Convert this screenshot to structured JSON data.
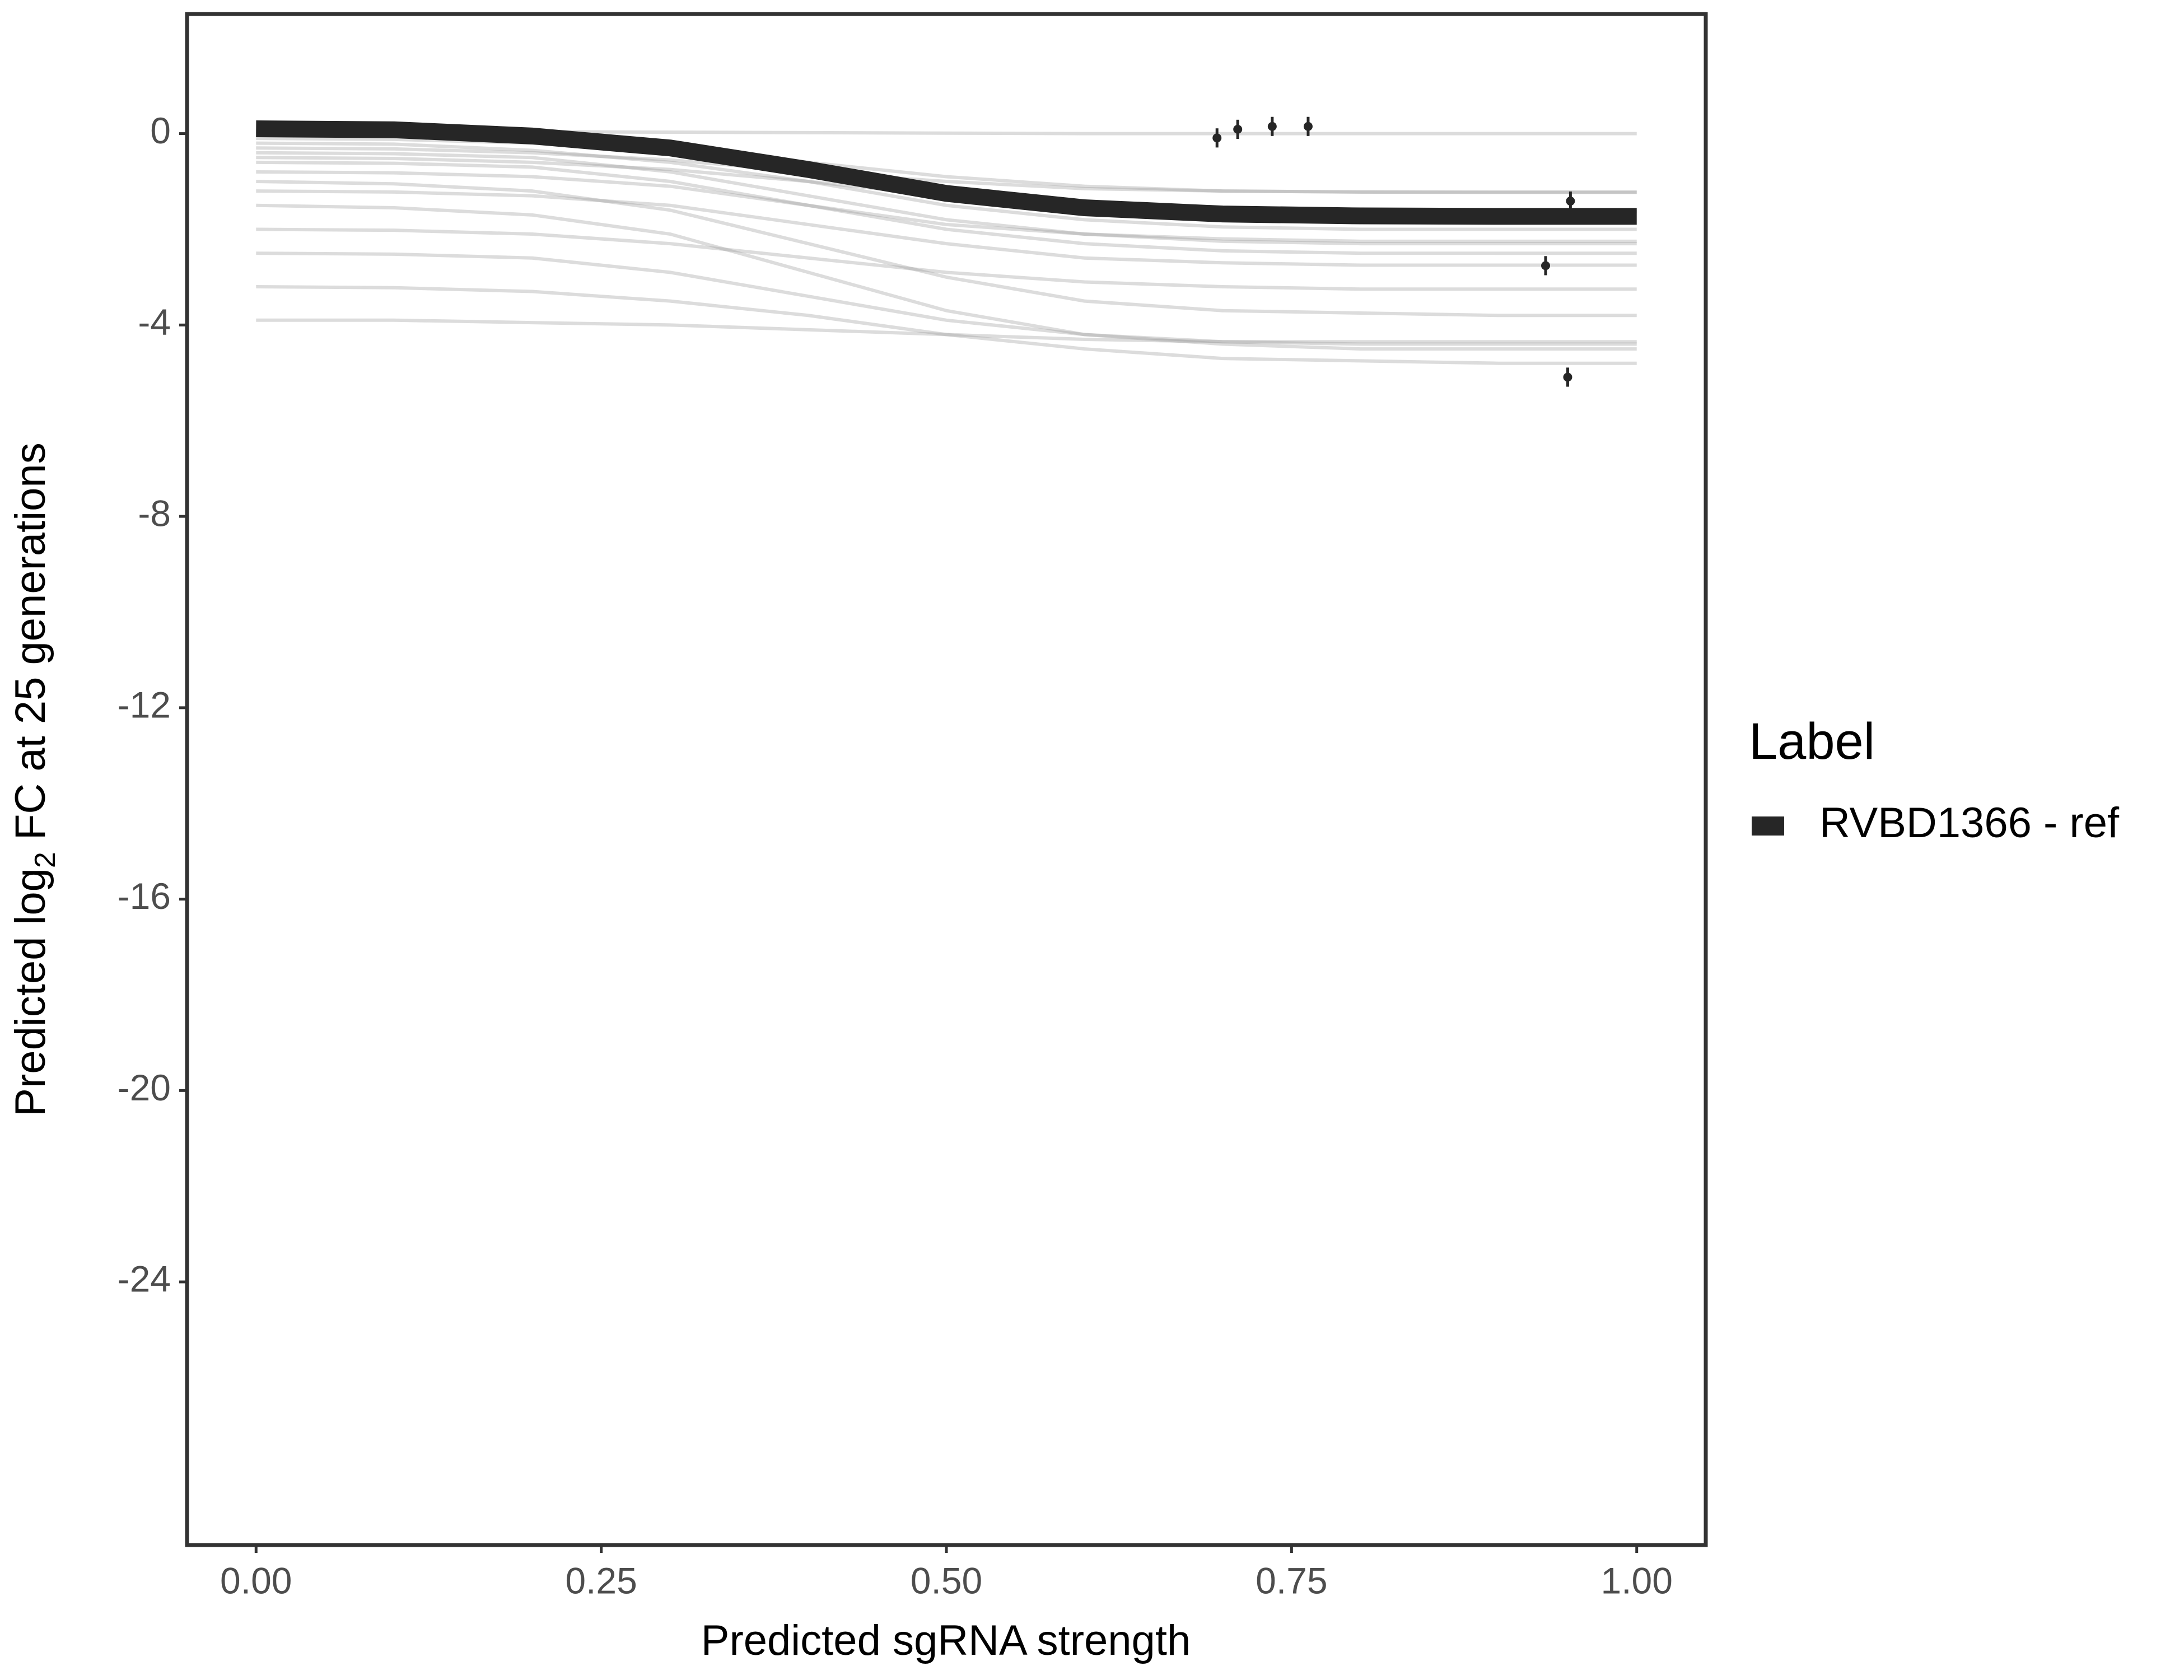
{
  "chart_data": {
    "type": "line",
    "x_label": "Predicted sgRNA strength",
    "y_label": {
      "before": "Predicted  log",
      "sub": "2",
      "after": " FC at 25 generations"
    },
    "legend_title": "Label",
    "x": [
      0,
      0.1,
      0.2,
      0.3,
      0.4,
      0.5,
      0.6,
      0.7,
      0.8,
      0.9,
      1.0
    ],
    "series": [
      {
        "name": "RVBD1366 - ref",
        "color": "#262626",
        "values": [
          0.1,
          0.08,
          -0.05,
          -0.3,
          -0.75,
          -1.25,
          -1.55,
          -1.68,
          -1.72,
          -1.73,
          -1.73
        ]
      }
    ],
    "draw_color": "#9a9a9a",
    "draws": [
      {
        "values": [
          0.05,
          0.05,
          0.04,
          0.03,
          0.02,
          0.01,
          0.0,
          0.0,
          0.0,
          0.0,
          0.0
        ]
      },
      {
        "values": [
          -0.1,
          -0.12,
          -0.2,
          -0.35,
          -0.6,
          -0.9,
          -1.1,
          -1.2,
          -1.22,
          -1.23,
          -1.23
        ]
      },
      {
        "values": [
          -0.2,
          -0.22,
          -0.35,
          -0.6,
          -1.0,
          -1.5,
          -1.8,
          -1.95,
          -2.0,
          -2.0,
          -2.0
        ]
      },
      {
        "values": [
          -0.3,
          -0.32,
          -0.4,
          -0.55,
          -0.8,
          -1.0,
          -1.15,
          -1.2,
          -1.22,
          -1.22,
          -1.22
        ]
      },
      {
        "values": [
          -0.4,
          -0.42,
          -0.5,
          -0.8,
          -1.3,
          -1.8,
          -2.1,
          -2.25,
          -2.3,
          -2.3,
          -2.3
        ]
      },
      {
        "values": [
          -0.5,
          -0.52,
          -0.6,
          -0.75,
          -1.0,
          -1.3,
          -1.5,
          -1.6,
          -1.62,
          -1.63,
          -1.63
        ]
      },
      {
        "values": [
          -0.6,
          -0.62,
          -0.7,
          -1.0,
          -1.5,
          -2.0,
          -2.3,
          -2.45,
          -2.5,
          -2.5,
          -2.5
        ]
      },
      {
        "values": [
          -0.8,
          -0.82,
          -0.9,
          -1.1,
          -1.5,
          -1.9,
          -2.1,
          -2.2,
          -2.25,
          -2.25,
          -2.25
        ]
      },
      {
        "values": [
          -1.0,
          -1.05,
          -1.2,
          -1.6,
          -2.3,
          -3.0,
          -3.5,
          -3.7,
          -3.75,
          -3.8,
          -3.8
        ]
      },
      {
        "values": [
          -1.2,
          -1.22,
          -1.3,
          -1.5,
          -1.9,
          -2.3,
          -2.6,
          -2.7,
          -2.75,
          -2.75,
          -2.75
        ]
      },
      {
        "values": [
          -1.5,
          -1.55,
          -1.7,
          -2.1,
          -2.9,
          -3.7,
          -4.2,
          -4.4,
          -4.5,
          -4.5,
          -4.5
        ]
      },
      {
        "values": [
          -2.0,
          -2.02,
          -2.1,
          -2.3,
          -2.6,
          -2.9,
          -3.1,
          -3.2,
          -3.25,
          -3.25,
          -3.25
        ]
      },
      {
        "values": [
          -2.5,
          -2.52,
          -2.6,
          -2.9,
          -3.4,
          -3.9,
          -4.2,
          -4.35,
          -4.4,
          -4.4,
          -4.4
        ]
      },
      {
        "values": [
          -3.2,
          -3.22,
          -3.3,
          -3.5,
          -3.8,
          -4.2,
          -4.5,
          -4.7,
          -4.75,
          -4.8,
          -4.8
        ]
      },
      {
        "values": [
          -3.9,
          -3.9,
          -3.95,
          -4.0,
          -4.1,
          -4.2,
          -4.3,
          -4.35,
          -4.35,
          -4.35,
          -4.35
        ]
      }
    ],
    "points": {
      "x": [
        0.696,
        0.711,
        0.736,
        0.762,
        0.934,
        0.952,
        0.95
      ],
      "y": [
        -0.09,
        0.09,
        0.15,
        0.15,
        -2.76,
        -1.41,
        -5.09
      ],
      "err": [
        0.2,
        0.2,
        0.2,
        0.2,
        0.2,
        0.2,
        0.2
      ]
    },
    "xlim": [
      -0.05,
      1.05
    ],
    "ylim": [
      -29.5,
      2.5
    ],
    "xticks": [
      {
        "value": 0,
        "label": "0.00"
      },
      {
        "value": 0.25,
        "label": "0.25"
      },
      {
        "value": 0.5,
        "label": "0.50"
      },
      {
        "value": 0.75,
        "label": "0.75"
      },
      {
        "value": 1,
        "label": "1.00"
      }
    ],
    "yticks": [
      0,
      -4,
      -8,
      -12,
      -16,
      -20,
      -24
    ],
    "grid": false
  }
}
